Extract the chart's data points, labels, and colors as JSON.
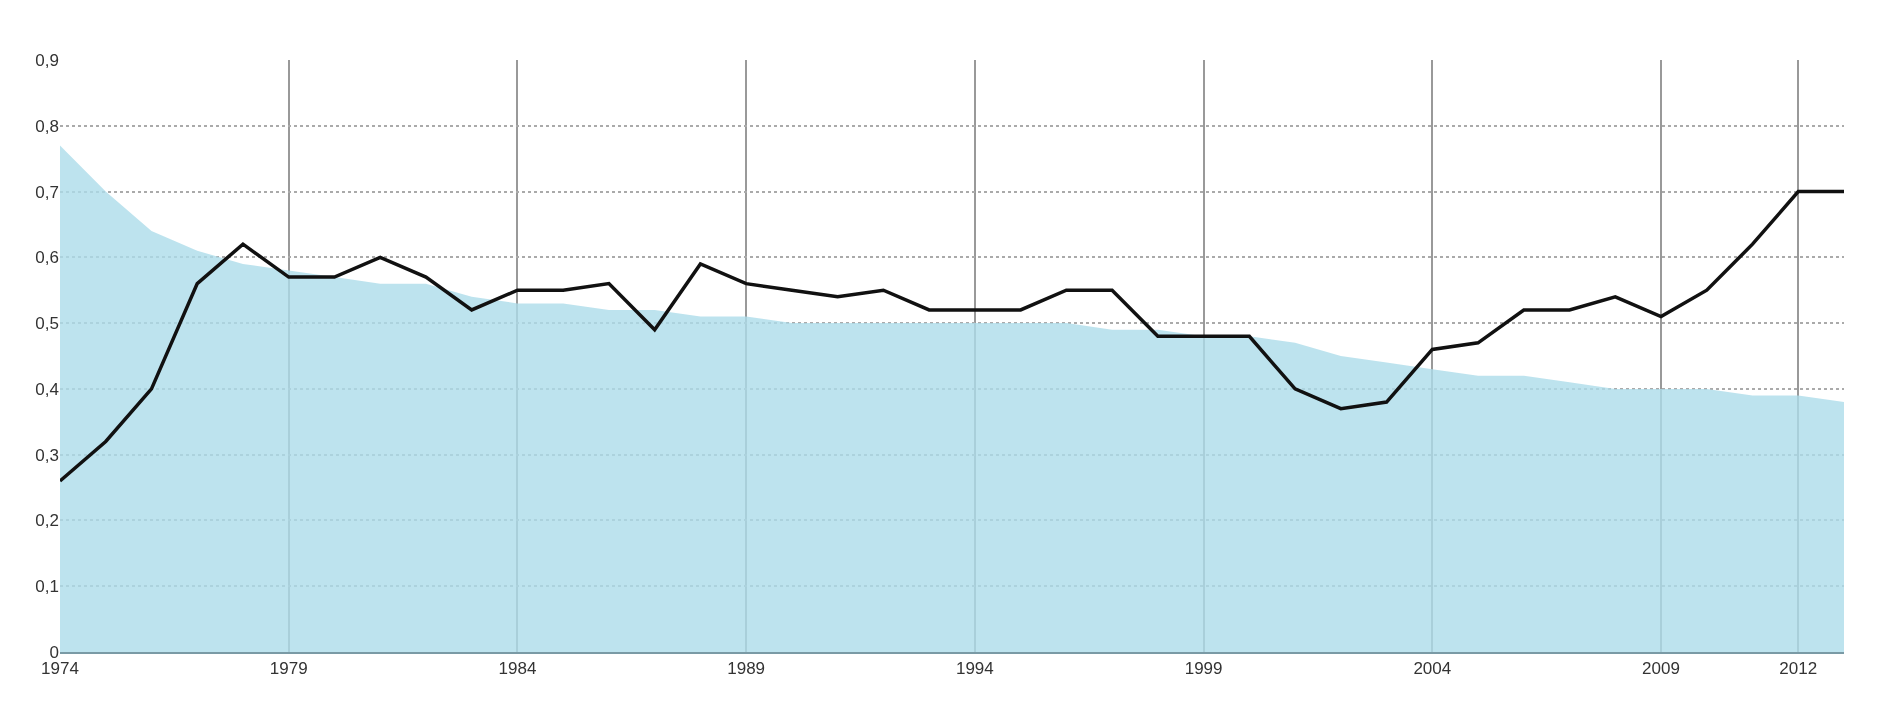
{
  "chart_data": {
    "type": "line",
    "x": [
      1974,
      1975,
      1976,
      1977,
      1978,
      1979,
      1980,
      1981,
      1982,
      1983,
      1984,
      1985,
      1986,
      1987,
      1988,
      1989,
      1990,
      1991,
      1992,
      1993,
      1994,
      1995,
      1996,
      1997,
      1998,
      1999,
      2000,
      2001,
      2002,
      2003,
      2004,
      2005,
      2006,
      2007,
      2008,
      2009,
      2010,
      2011,
      2012,
      2013
    ],
    "series": [
      {
        "type": "area",
        "color": "#bde3ee",
        "values": [
          0.77,
          0.7,
          0.64,
          0.61,
          0.59,
          0.58,
          0.57,
          0.56,
          0.56,
          0.54,
          0.53,
          0.53,
          0.52,
          0.52,
          0.51,
          0.51,
          0.5,
          0.5,
          0.5,
          0.5,
          0.5,
          0.5,
          0.5,
          0.49,
          0.49,
          0.48,
          0.48,
          0.47,
          0.45,
          0.44,
          0.43,
          0.42,
          0.42,
          0.41,
          0.4,
          0.4,
          0.4,
          0.39,
          0.39,
          0.38
        ]
      },
      {
        "color": "#111111",
        "values": [
          0.26,
          0.32,
          0.4,
          0.56,
          0.62,
          0.57,
          0.57,
          0.6,
          0.57,
          0.52,
          0.55,
          0.55,
          0.56,
          0.49,
          0.59,
          0.56,
          0.55,
          0.54,
          0.55,
          0.52,
          0.52,
          0.52,
          0.55,
          0.55,
          0.48,
          0.48,
          0.48,
          0.4,
          0.37,
          0.38,
          0.46,
          0.47,
          0.52,
          0.52,
          0.54,
          0.51,
          0.55,
          0.62,
          0.7,
          0.7
        ]
      }
    ],
    "xlim": [
      1974,
      2013
    ],
    "xticks": [
      1974,
      1979,
      1984,
      1989,
      1994,
      1999,
      2004,
      2009,
      2012
    ],
    "ylim": [
      0,
      0.9
    ],
    "yticks": [
      0,
      {
        "value": 0.1,
        "label": "0,1"
      },
      {
        "value": 0.2,
        "label": "0,2"
      },
      {
        "value": 0.3,
        "label": "0,3"
      },
      {
        "value": 0.4,
        "label": "0,4"
      },
      {
        "value": 0.5,
        "label": "0,5"
      },
      {
        "value": 0.6,
        "label": "0,6"
      },
      {
        "value": 0.7,
        "label": "0,7"
      },
      {
        "value": 0.8,
        "label": "0,8"
      },
      {
        "value": 0.9,
        "label": "0,9"
      }
    ],
    "grid": true
  }
}
